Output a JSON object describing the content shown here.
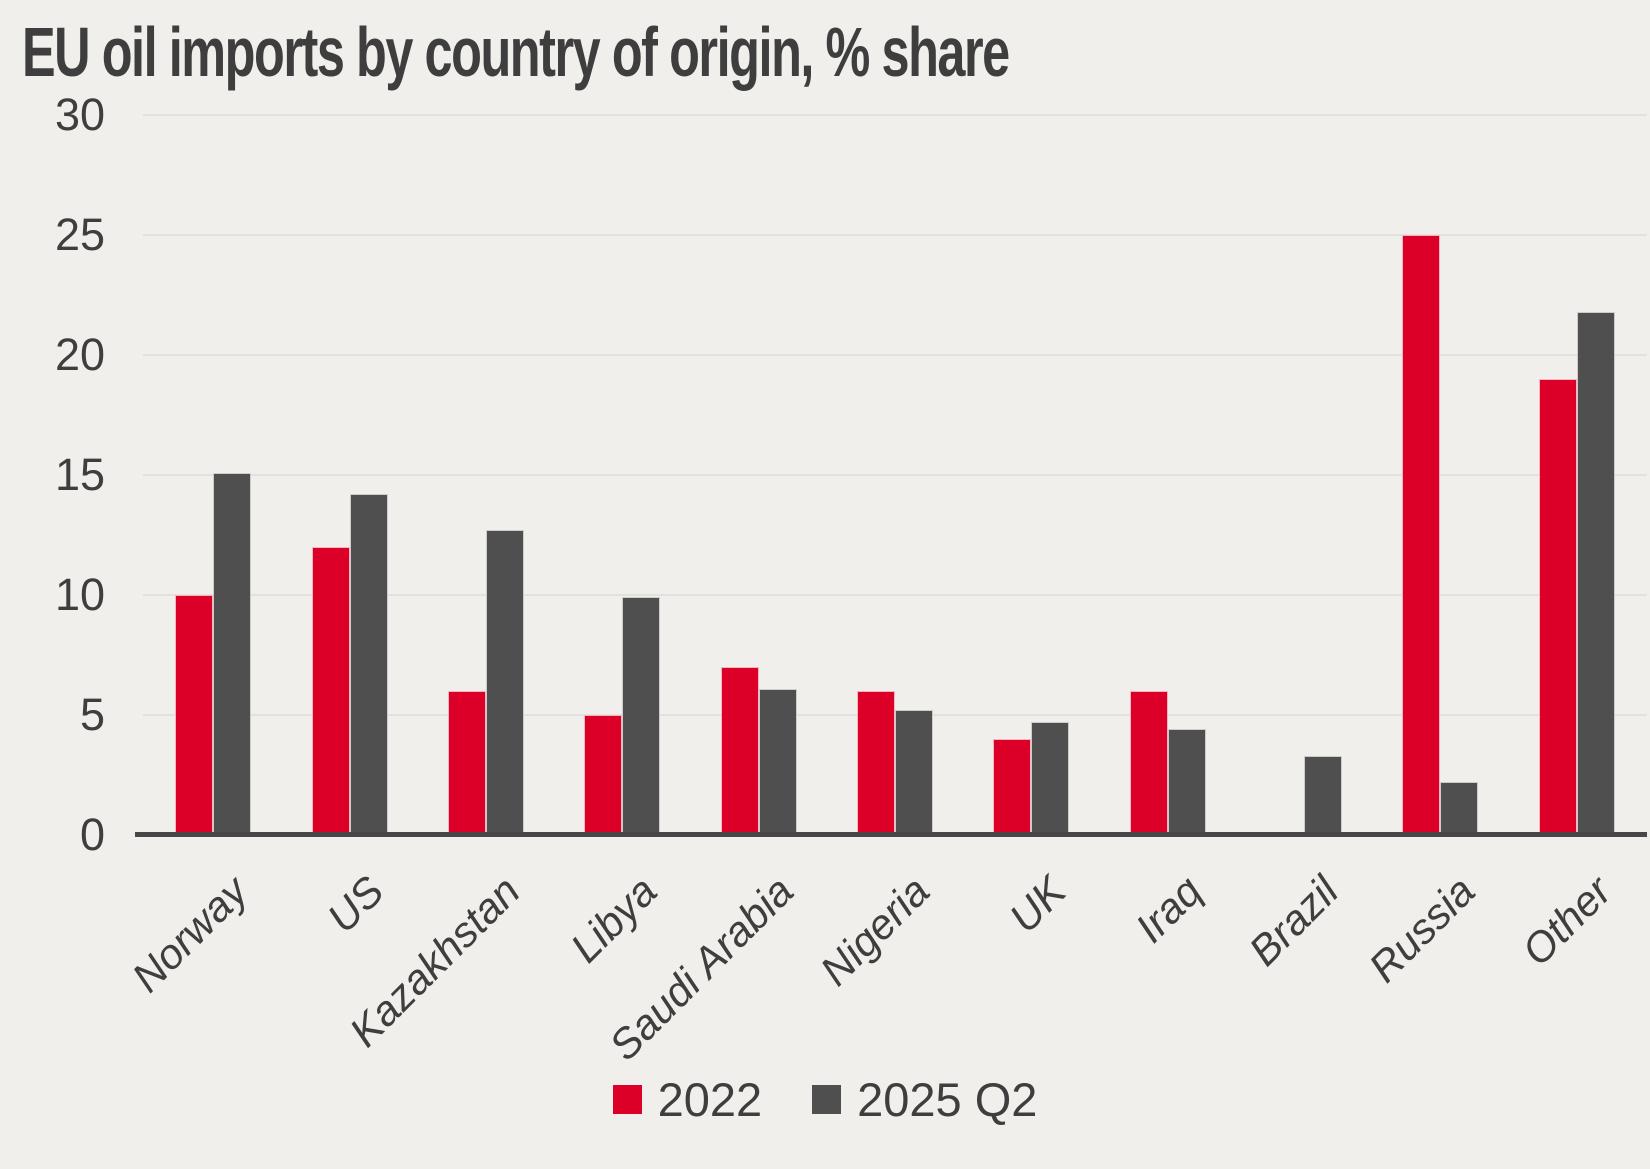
{
  "title": "EU oil imports by country of origin, % share",
  "colors": {
    "background": "#f1efec",
    "text": "#3e3e3e",
    "gridline": "#e3e1de",
    "axis_line": "#474747",
    "series_2022": "#dc0028",
    "series_2025_q2": "#4f4f4f"
  },
  "chart_data": {
    "type": "bar",
    "title": "EU oil imports by country of origin, % share",
    "categories": [
      "Norway",
      "US",
      "Kazakhstan",
      "Libya",
      "Saudi Arabia",
      "Nigeria",
      "UK",
      "Iraq",
      "Brazil",
      "Russia",
      "Other"
    ],
    "series": [
      {
        "name": "2022",
        "color": "#dc0028",
        "values": [
          10.0,
          12.0,
          6.0,
          5.0,
          7.0,
          6.0,
          4.0,
          6.0,
          0,
          25.0,
          19.0
        ]
      },
      {
        "name": "2025 Q2",
        "color": "#4f4f4f",
        "values": [
          15.1,
          14.2,
          12.7,
          9.9,
          6.1,
          5.2,
          4.7,
          4.4,
          3.3,
          2.2,
          21.8
        ]
      }
    ],
    "xlabel": "",
    "ylabel": "",
    "ylim": [
      0,
      30
    ],
    "yticks": [
      0,
      5,
      10,
      15,
      20,
      25,
      30
    ],
    "grid": "horizontal",
    "legend_position": "bottom",
    "x_tick_rotation_deg": 45
  },
  "legend": {
    "items": [
      {
        "label": "2022"
      },
      {
        "label": "2025 Q2"
      }
    ]
  }
}
